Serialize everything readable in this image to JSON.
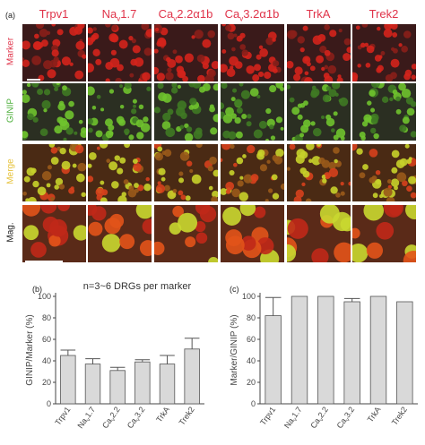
{
  "figure": {
    "panel_a_label": "(a)",
    "panel_b_label": "(b)",
    "panel_c_label": "(c)",
    "columns": [
      {
        "label": "Trpv1"
      },
      {
        "label": "Nav1.7"
      },
      {
        "label": "Cav2.2α1b"
      },
      {
        "label": "Cav3.2α1b"
      },
      {
        "label": "TrkA"
      },
      {
        "label": "Trek2"
      }
    ],
    "rows": [
      {
        "label": "Marker",
        "color": "#e0344a"
      },
      {
        "label": "GINIP",
        "color": "#4caf3a"
      },
      {
        "label": "Merge",
        "color": "#e6c23a"
      },
      {
        "label": "Mag.",
        "color": "#222222"
      }
    ],
    "colors": {
      "marker_red": "#c81e1e",
      "ginip_green": "#5fbf2a",
      "bar_fill": "#d9d9d9"
    }
  },
  "chart_data": [
    {
      "type": "bar",
      "annotation": "n=3~6 DRGs per marker",
      "ylabel": "GINIP/Marker (%)",
      "ylim": [
        0,
        100
      ],
      "yticks": [
        0,
        20,
        40,
        60,
        80,
        100
      ],
      "categories": [
        "Trpv1",
        "Nav1.7",
        "Cav2.2",
        "Cav3.2",
        "TrkA",
        "Trek2"
      ],
      "values": [
        45,
        37,
        31,
        39,
        37,
        51
      ],
      "errors": [
        5,
        5,
        3,
        2,
        8,
        10
      ]
    },
    {
      "type": "bar",
      "ylabel": "Marker/GINIP (%)",
      "ylim": [
        0,
        100
      ],
      "yticks": [
        0,
        20,
        40,
        60,
        80,
        100
      ],
      "categories": [
        "Trpv1",
        "Nav1.7",
        "Cav2.2",
        "Cav3.2",
        "TrkA",
        "Trek2"
      ],
      "values": [
        82,
        100,
        100,
        95,
        100,
        95
      ],
      "errors": [
        17,
        0,
        0,
        3,
        0,
        0
      ]
    }
  ]
}
